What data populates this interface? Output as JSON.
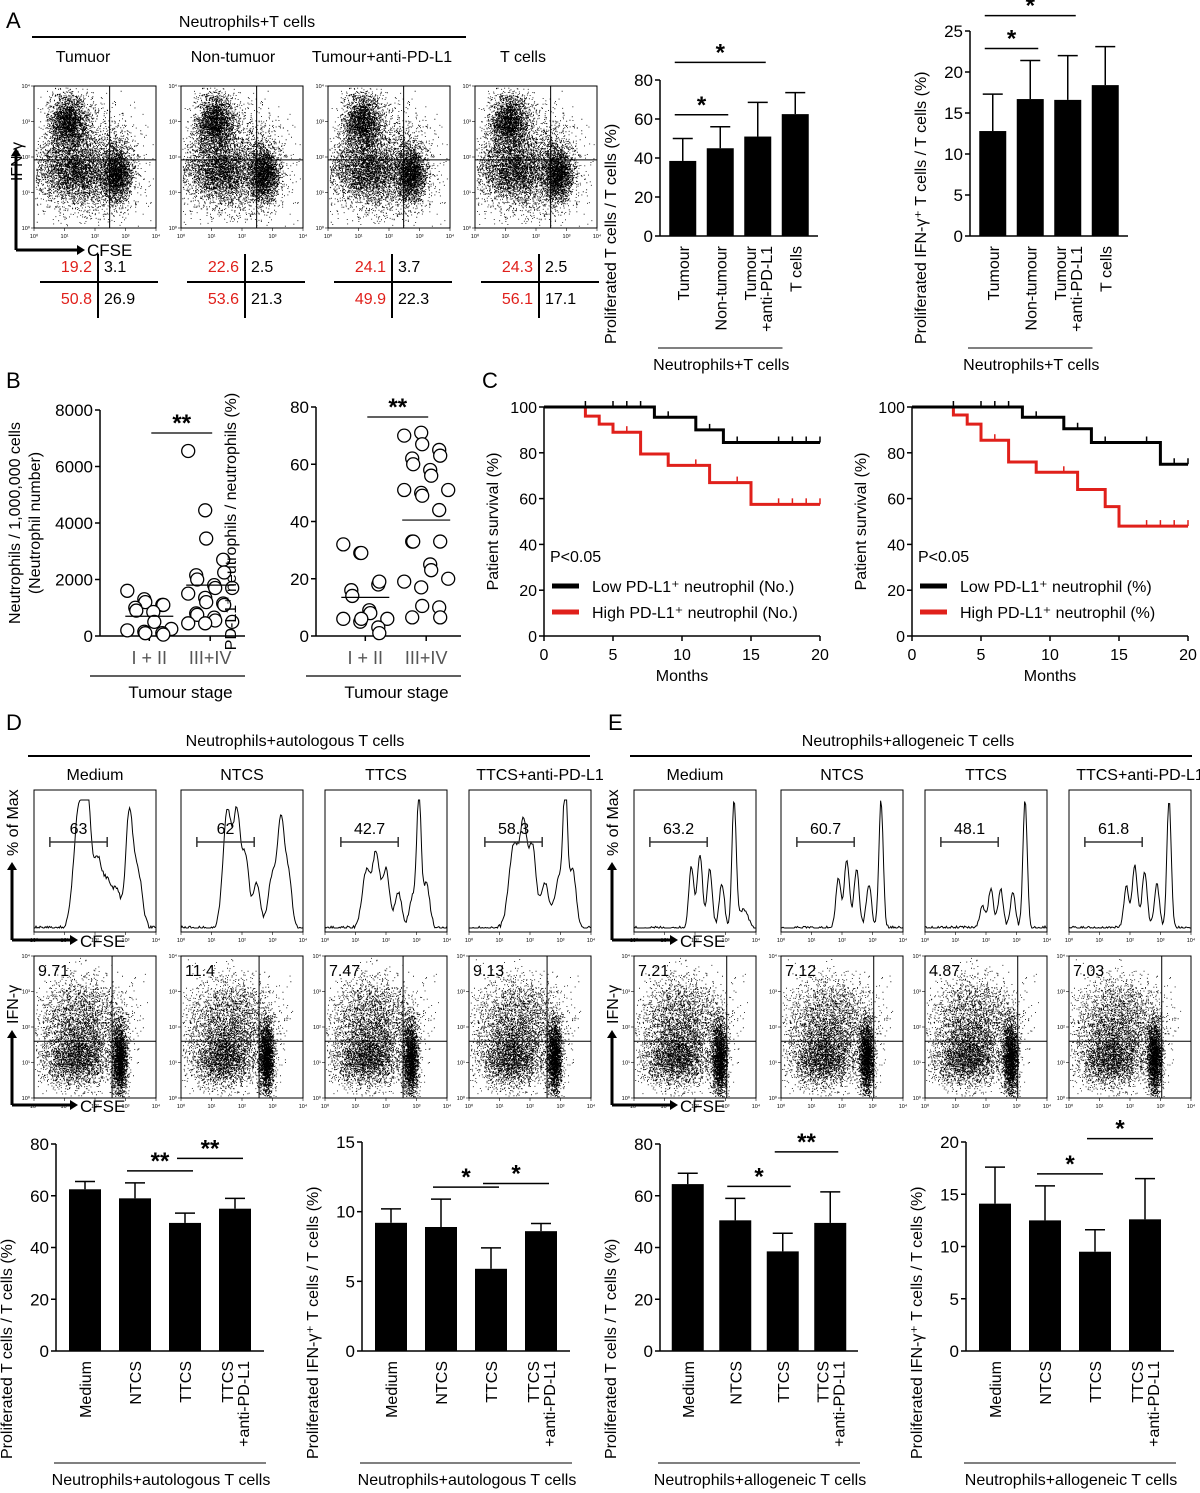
{
  "panels": {
    "A": {
      "letter": "A",
      "group_label": "Neutrophils+T cells",
      "flow_plots": [
        {
          "title": "Tumuor",
          "quadrants": {
            "ul": "19.2",
            "ur": "3.1",
            "ll": "50.8",
            "lr": "26.9"
          }
        },
        {
          "title": "Non-tumuor",
          "quadrants": {
            "ul": "22.6",
            "ur": "2.5",
            "ll": "53.6",
            "lr": "21.3"
          }
        },
        {
          "title": "Tumour+anti-PD-L1",
          "quadrants": {
            "ul": "24.1",
            "ur": "3.7",
            "ll": "49.9",
            "lr": "22.3"
          }
        },
        {
          "title": "T cells",
          "quadrants": {
            "ul": "24.3",
            "ur": "2.5",
            "ll": "56.1",
            "lr": "17.1"
          }
        }
      ],
      "x_axis": "CFSE",
      "y_axis": "IFN-γ",
      "log_ticks": [
        "10⁰",
        "10¹",
        "10²",
        "10³",
        "10⁴"
      ]
    },
    "B": {
      "letter": "B"
    },
    "C": {
      "letter": "C"
    },
    "D": {
      "letter": "D",
      "group_label": "Neutrophils+autologous T cells",
      "conditions": [
        "Medium",
        "NTCS",
        "TTCS",
        "TTCS+anti-PD-L1"
      ],
      "histogram_values": [
        "63",
        "62",
        "42.7",
        "58.3"
      ],
      "dot_values": [
        "9.71",
        "11.4",
        "7.47",
        "9.13"
      ],
      "hist_y_axis": "% of Max",
      "x_axis": "CFSE",
      "y_axis": "IFN-γ"
    },
    "E": {
      "letter": "E",
      "group_label": "Neutrophils+allogeneic T cells",
      "conditions": [
        "Medium",
        "NTCS",
        "TTCS",
        "TTCS+anti-PD-L1"
      ],
      "histogram_values": [
        "63.2",
        "60.7",
        "48.1",
        "61.8"
      ],
      "dot_values": [
        "7.21",
        "7.12",
        "4.87",
        "7.03"
      ],
      "hist_y_axis": "% of Max",
      "x_axis": "CFSE",
      "y_axis": "IFN-γ"
    }
  },
  "colors": {
    "red": "#e0201b",
    "black": "#000000"
  },
  "chart_data": [
    {
      "id": "A-prolif",
      "type": "bar",
      "title": "",
      "ylabel": "Proliferated T cells / T cells (%)",
      "xlabel": "Neutrophils+T cells",
      "categories": [
        "Tumour",
        "Non-tumour",
        "Tumour\n+anti-PD-L1",
        "T cells"
      ],
      "group_categories": 3,
      "values": [
        38.5,
        45,
        51,
        62.5
      ],
      "errors": [
        11.5,
        11,
        17.5,
        11
      ],
      "ylim": [
        0,
        80
      ],
      "yticks": [
        0,
        20,
        40,
        60,
        80
      ],
      "significance": [
        {
          "from": 0,
          "to": 1,
          "label": "*",
          "level": 1
        },
        {
          "from": 0,
          "to": 2,
          "label": "*",
          "level": 2
        }
      ]
    },
    {
      "id": "A-ifn",
      "type": "bar",
      "ylabel": "Proliferated IFN-γ⁺ T cells / T cells (%)",
      "xlabel": "Neutrophils+T cells",
      "categories": [
        "Tumour",
        "Non-tumour",
        "Tumour\n+anti-PD-L1",
        "T cells"
      ],
      "group_categories": 3,
      "values": [
        12.8,
        16.7,
        16.6,
        18.4
      ],
      "errors": [
        4.5,
        4.7,
        5.4,
        4.7
      ],
      "ylim": [
        0,
        25
      ],
      "yticks": [
        0,
        5,
        10,
        15,
        20,
        25
      ],
      "significance": [
        {
          "from": 0,
          "to": 1,
          "label": "*",
          "level": 1
        },
        {
          "from": 0,
          "to": 2,
          "label": "*",
          "level": 2
        }
      ]
    },
    {
      "id": "B-number",
      "type": "scatter",
      "ylabel": "Neutrophils / 1,000,000 cells\n(Neutrophil number)",
      "xlabel": "Tumour stage",
      "categories": [
        "I + II",
        "III+IV"
      ],
      "ylim": [
        0,
        8000
      ],
      "yticks": [
        0,
        2000,
        4000,
        6000,
        8000
      ],
      "means": [
        700,
        1800
      ],
      "points": [
        [
          1600,
          1300,
          1200,
          1100,
          1100,
          1000,
          900,
          850,
          500,
          250,
          200,
          150,
          100,
          100,
          50
        ],
        [
          6550,
          4450,
          3450,
          2700,
          2250,
          2150,
          2000,
          1800,
          1700,
          1700,
          1500,
          1350,
          1200,
          1150,
          1100,
          800,
          750,
          650,
          550,
          500,
          450,
          450
        ]
      ],
      "significance": [
        {
          "from": 0,
          "to": 1,
          "label": "**",
          "level": 1
        }
      ]
    },
    {
      "id": "B-percent",
      "type": "scatter",
      "ylabel": "PD-L1⁺ neutrophils / neutrophils (%)",
      "xlabel": "Tumour stage",
      "categories": [
        "I + II",
        "III+IV"
      ],
      "ylim": [
        0,
        80
      ],
      "yticks": [
        0,
        20,
        40,
        60,
        80
      ],
      "means": [
        13.5,
        40.5
      ],
      "points": [
        [
          32,
          29,
          29,
          18,
          19,
          16,
          14,
          9,
          8,
          6,
          6,
          5,
          6,
          3,
          1
        ],
        [
          70,
          71,
          67,
          65,
          63,
          62,
          60,
          58,
          56,
          51,
          51,
          50,
          49,
          44,
          33,
          33,
          33,
          25,
          23,
          20,
          19,
          17,
          10.5,
          10,
          6.5,
          6.5
        ]
      ],
      "significance": [
        {
          "from": 0,
          "to": 1,
          "label": "**",
          "level": 1
        }
      ]
    },
    {
      "id": "C-number",
      "type": "line",
      "subtype": "kaplan-meier",
      "ylabel": "Patient survival (%)",
      "xlabel": "Months",
      "xlim": [
        0,
        20
      ],
      "ylim": [
        0,
        100
      ],
      "xticks": [
        0,
        5,
        10,
        15,
        20
      ],
      "yticks": [
        0,
        20,
        40,
        60,
        80,
        100
      ],
      "annotation": "P<0.05",
      "legend_position": "bottom-left",
      "series": [
        {
          "name": "Low PD-L1⁺ neutrophil (No.)",
          "color": "#000000",
          "steps": [
            [
              0,
              100
            ],
            [
              8,
              95.5
            ],
            [
              11,
              90
            ],
            [
              13,
              84.5
            ],
            [
              20,
              84.5
            ]
          ],
          "censored": [
            [
              3,
              100
            ],
            [
              5,
              100
            ],
            [
              6,
              100
            ],
            [
              7,
              100
            ],
            [
              9,
              95.5
            ],
            [
              12,
              90
            ],
            [
              14,
              84.5
            ],
            [
              17,
              84.5
            ],
            [
              18,
              84.5
            ],
            [
              19,
              84.5
            ],
            [
              20,
              84.5
            ]
          ]
        },
        {
          "name": "High PD-L1⁺ neutrophil (No.)",
          "color": "#e0201b",
          "steps": [
            [
              0,
              100
            ],
            [
              3,
              96
            ],
            [
              4,
              92.5
            ],
            [
              5,
              89
            ],
            [
              7,
              79.5
            ],
            [
              9,
              74.5
            ],
            [
              12,
              67
            ],
            [
              15,
              57.5
            ],
            [
              20,
              57.5
            ]
          ],
          "censored": [
            [
              6,
              89
            ],
            [
              11,
              74.5
            ],
            [
              14,
              67
            ],
            [
              17,
              57.5
            ],
            [
              18,
              57.5
            ],
            [
              19,
              57.5
            ],
            [
              20,
              57.5
            ]
          ]
        }
      ]
    },
    {
      "id": "C-percent",
      "type": "line",
      "subtype": "kaplan-meier",
      "ylabel": "Patient survival (%)",
      "xlabel": "Months",
      "xlim": [
        0,
        20
      ],
      "ylim": [
        0,
        100
      ],
      "xticks": [
        0,
        5,
        10,
        15,
        20
      ],
      "yticks": [
        0,
        20,
        40,
        60,
        80,
        100
      ],
      "annotation": "P<0.05",
      "legend_position": "bottom-left",
      "series": [
        {
          "name": "Low PD-L1⁺ neutrophil (%)",
          "color": "#000000",
          "steps": [
            [
              0,
              100
            ],
            [
              8,
              95.5
            ],
            [
              11,
              90.5
            ],
            [
              13,
              84.5
            ],
            [
              18,
              75
            ],
            [
              20,
              75
            ]
          ],
          "censored": [
            [
              3,
              100
            ],
            [
              5,
              100
            ],
            [
              6,
              100
            ],
            [
              7,
              100
            ],
            [
              9,
              95.5
            ],
            [
              12,
              90.5
            ],
            [
              14,
              84.5
            ],
            [
              17,
              84.5
            ],
            [
              19,
              75
            ],
            [
              20,
              75
            ]
          ]
        },
        {
          "name": "High PD-L1⁺ neutrophil (%)",
          "color": "#e0201b",
          "steps": [
            [
              0,
              100
            ],
            [
              3,
              96.5
            ],
            [
              4,
              92.5
            ],
            [
              5,
              85.5
            ],
            [
              7,
              76
            ],
            [
              9,
              71.5
            ],
            [
              12,
              64
            ],
            [
              14,
              56.5
            ],
            [
              15,
              48
            ],
            [
              20,
              48
            ]
          ],
          "censored": [
            [
              6,
              85.5
            ],
            [
              11,
              71.5
            ],
            [
              17,
              48
            ],
            [
              18,
              48
            ],
            [
              19,
              48
            ],
            [
              20,
              48
            ]
          ]
        }
      ]
    },
    {
      "id": "D-prolif",
      "type": "bar",
      "ylabel": "Proliferated T cells / T cells (%)",
      "xlabel": "Neutrophils+autologous T cells",
      "categories": [
        "Medium",
        "NTCS",
        "TTCS",
        "TTCS\n+anti-PD-L1"
      ],
      "group_categories": 4,
      "values": [
        62.5,
        59,
        49.5,
        55
      ],
      "errors": [
        3,
        6,
        3.8,
        4
      ],
      "ylim": [
        0,
        80
      ],
      "yticks": [
        0,
        20,
        40,
        60,
        80
      ],
      "significance": [
        {
          "from": 1,
          "to": 2,
          "label": "**",
          "level": 1
        },
        {
          "from": 2,
          "to": 3,
          "label": "**",
          "level": 2
        }
      ]
    },
    {
      "id": "D-ifn",
      "type": "bar",
      "ylabel": "Proliferated IFN-γ⁺ T cells / T cells (%)",
      "xlabel": "Neutrophils+autologous T cells",
      "categories": [
        "Medium",
        "NTCS",
        "TTCS",
        "TTCS\n+anti-PD-L1"
      ],
      "group_categories": 4,
      "values": [
        9.2,
        8.9,
        5.9,
        8.6
      ],
      "errors": [
        1,
        2,
        1.5,
        0.55
      ],
      "ylim": [
        0,
        15
      ],
      "yticks": [
        0,
        5,
        10,
        15
      ],
      "significance": [
        {
          "from": 1,
          "to": 2,
          "label": "*",
          "level": 1
        },
        {
          "from": 2,
          "to": 3,
          "label": "*",
          "level": 2
        }
      ]
    },
    {
      "id": "E-prolif",
      "type": "bar",
      "ylabel": "Proliferated T cells / T cells (%)",
      "xlabel": "Neutrophils+allogeneic T cells",
      "categories": [
        "Medium",
        "NTCS",
        "TTCS",
        "TTCS\n+anti-PD-L1"
      ],
      "group_categories": 4,
      "values": [
        64.5,
        50.5,
        38.5,
        49.5
      ],
      "errors": [
        4.2,
        8.5,
        7,
        12
      ],
      "ylim": [
        0,
        80
      ],
      "yticks": [
        0,
        20,
        40,
        60,
        80
      ],
      "significance": [
        {
          "from": 1,
          "to": 2,
          "label": "*",
          "level": 1
        },
        {
          "from": 2,
          "to": 3,
          "label": "**",
          "level": 2
        }
      ]
    },
    {
      "id": "E-ifn",
      "type": "bar",
      "ylabel": "Proliferated IFN-γ⁺ T cells / T cells (%)",
      "xlabel": "Neutrophils+allogeneic T cells",
      "categories": [
        "Medium",
        "NTCS",
        "TTCS",
        "TTCS\n+anti-PD-L1"
      ],
      "group_categories": 4,
      "values": [
        14.1,
        12.5,
        9.5,
        12.6
      ],
      "errors": [
        3.5,
        3.3,
        2.1,
        3.9
      ],
      "ylim": [
        0,
        20
      ],
      "yticks": [
        0,
        5,
        10,
        15,
        20
      ],
      "significance": [
        {
          "from": 1,
          "to": 2,
          "label": "*",
          "level": 1
        },
        {
          "from": 2,
          "to": 3,
          "label": "*",
          "level": 2
        }
      ]
    }
  ]
}
